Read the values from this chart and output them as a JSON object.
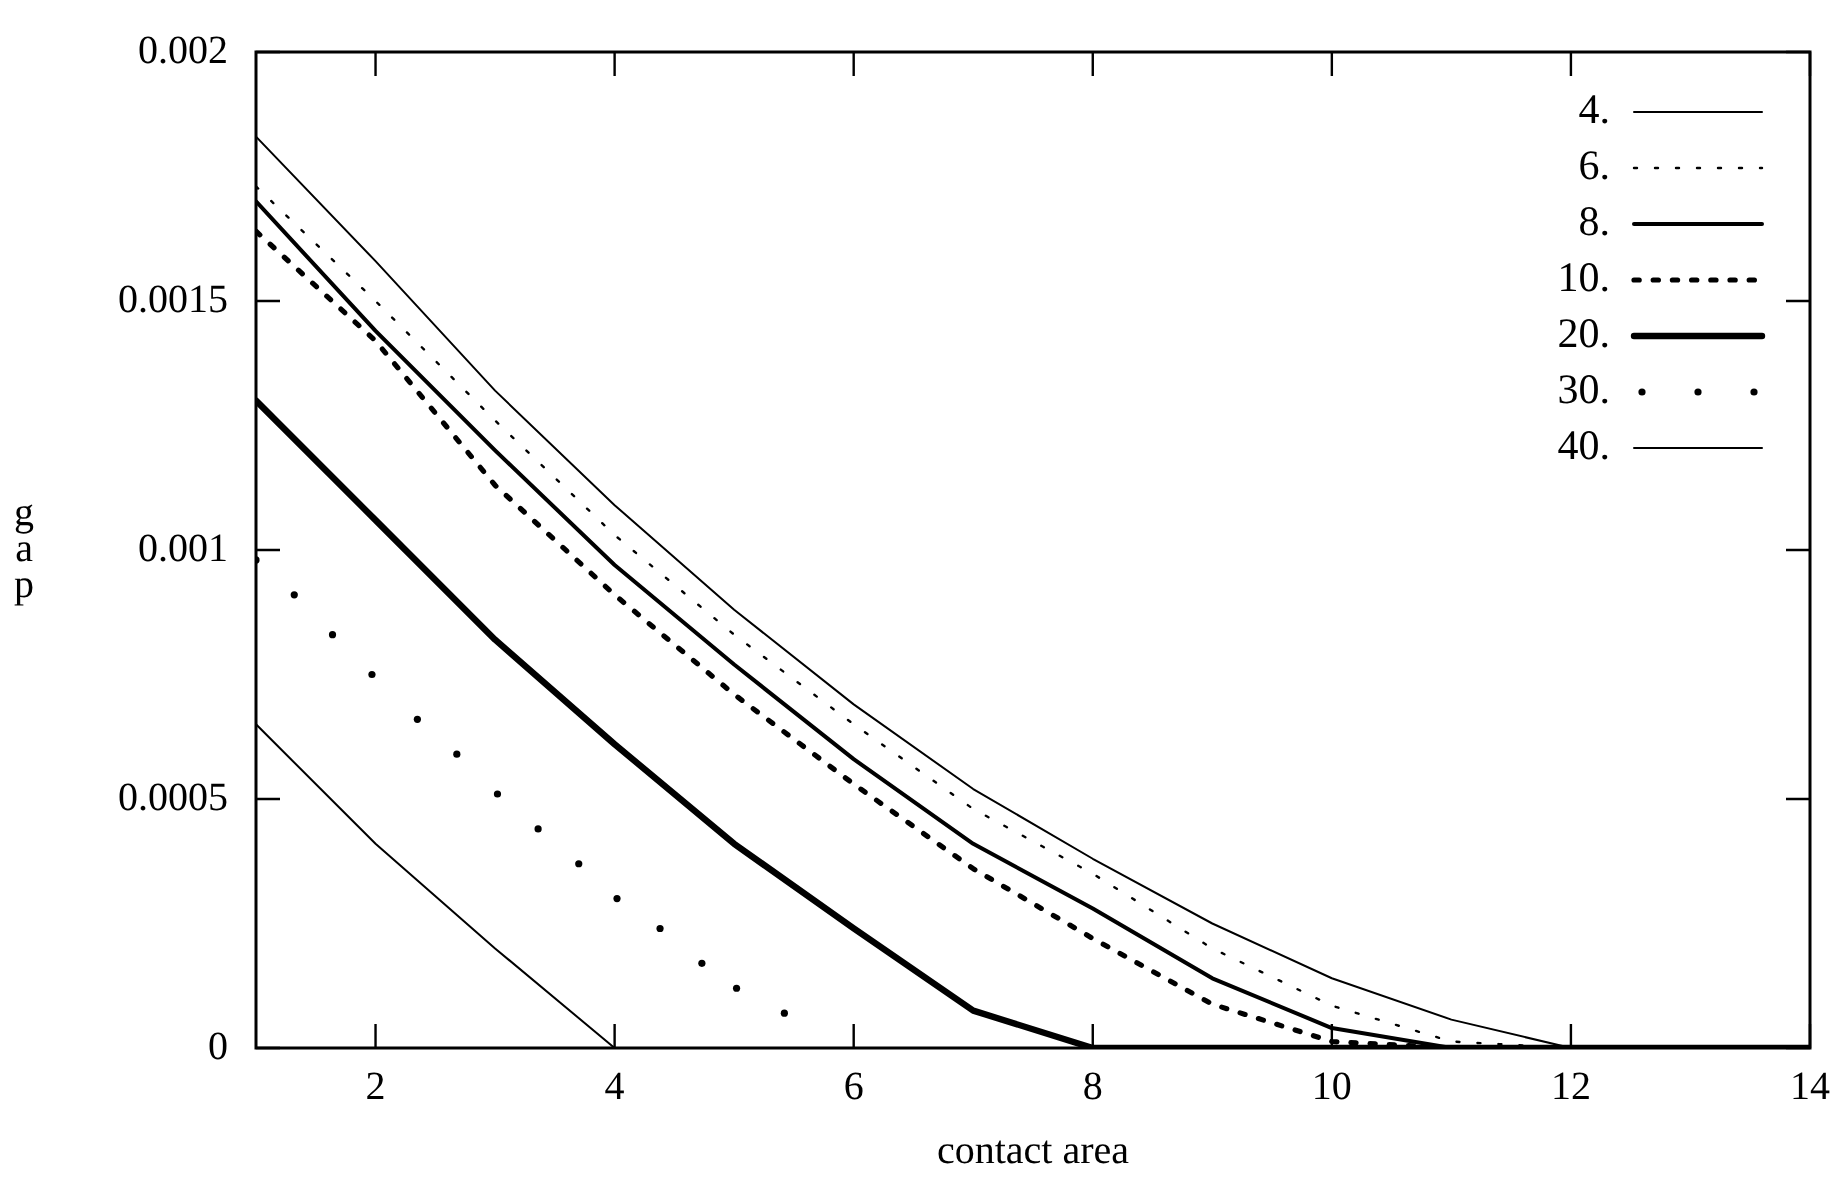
{
  "chart_data": {
    "type": "line",
    "xlabel": "contact area",
    "ylabel": "gap",
    "xlim": [
      1,
      14
    ],
    "xticks": [
      2,
      4,
      6,
      8,
      10,
      12,
      14
    ],
    "ylim": [
      0,
      0.002
    ],
    "yticks": [
      0,
      0.0005,
      0.001,
      0.0015,
      0.002
    ],
    "grid": false,
    "legend": "top right",
    "marker": "none",
    "series": [
      {
        "name": "4.",
        "color": "#000000",
        "line_style": "solid",
        "x": [
          1,
          2,
          3,
          4,
          5,
          6,
          7,
          8,
          9,
          10,
          11,
          12,
          13,
          14
        ],
        "values": [
          0.00183,
          0.00158,
          0.00132,
          0.00109,
          0.00088,
          0.00069,
          0.00052,
          0.00038,
          0.00025,
          0.00014,
          5.7e-05,
          0,
          0,
          0
        ]
      },
      {
        "name": "6.",
        "color": "#000000",
        "line_style": "dotted",
        "x": [
          1,
          2,
          3,
          4,
          5,
          6,
          7,
          8,
          9,
          10,
          11,
          12,
          13,
          14
        ],
        "values": [
          0.00173,
          0.0015,
          0.00126,
          0.00103,
          0.00083,
          0.00065,
          0.00048,
          0.00035,
          0.0002,
          8.5e-05,
          1.3e-05,
          0,
          0,
          0
        ]
      },
      {
        "name": "8.",
        "color": "#000000",
        "line_style": "solid",
        "x": [
          1,
          2,
          3,
          4,
          5,
          6,
          7,
          8,
          9,
          10,
          11,
          12,
          13,
          14
        ],
        "values": [
          0.0017,
          0.00144,
          0.0012,
          0.00097,
          0.00077,
          0.00058,
          0.00041,
          0.00028,
          0.00014,
          4e-05,
          0,
          0,
          0,
          0
        ]
      },
      {
        "name": "10.",
        "color": "#000000",
        "line_style": "dotted",
        "x": [
          1,
          2,
          3,
          4,
          5,
          6,
          7,
          8,
          9,
          10,
          11,
          12,
          13,
          14
        ],
        "values": [
          0.00164,
          0.00142,
          0.00113,
          0.00091,
          0.00071,
          0.00053,
          0.00036,
          0.00022,
          8.8e-05,
          1.3e-05,
          0,
          0,
          0,
          0
        ]
      },
      {
        "name": "20.",
        "color": "#000000",
        "line_style": "solid",
        "x": [
          1,
          2,
          3,
          4,
          5,
          6,
          7,
          8,
          9,
          10,
          11,
          12,
          13,
          14
        ],
        "values": [
          0.0013,
          0.00106,
          0.00082,
          0.00061,
          0.00041,
          0.00024,
          7.5e-05,
          0,
          0,
          0,
          0,
          0,
          0,
          0
        ]
      },
      {
        "name": "30.",
        "color": "#000000",
        "type": "scatter",
        "marker": "circle",
        "x": [
          1,
          1.32,
          1.64,
          1.97,
          2.35,
          2.68,
          3.02,
          3.36,
          3.7,
          4.02,
          4.38,
          4.73,
          5.02,
          5.42
        ],
        "values": [
          0.00098,
          0.00091,
          0.00083,
          0.00075,
          0.00066,
          0.00059,
          0.00051,
          0.00044,
          0.00037,
          0.0003,
          0.00024,
          0.00017,
          0.00012,
          7e-05
        ]
      },
      {
        "name": "40.",
        "color": "#000000",
        "line_style": "solid",
        "x": [
          1,
          2,
          3,
          4,
          5,
          6,
          7,
          8,
          9,
          10,
          11,
          12,
          13,
          14
        ],
        "values": [
          0.00065,
          0.00041,
          0.0002,
          0,
          0,
          0,
          0,
          0,
          0,
          0,
          0,
          0,
          0,
          0
        ]
      }
    ]
  }
}
